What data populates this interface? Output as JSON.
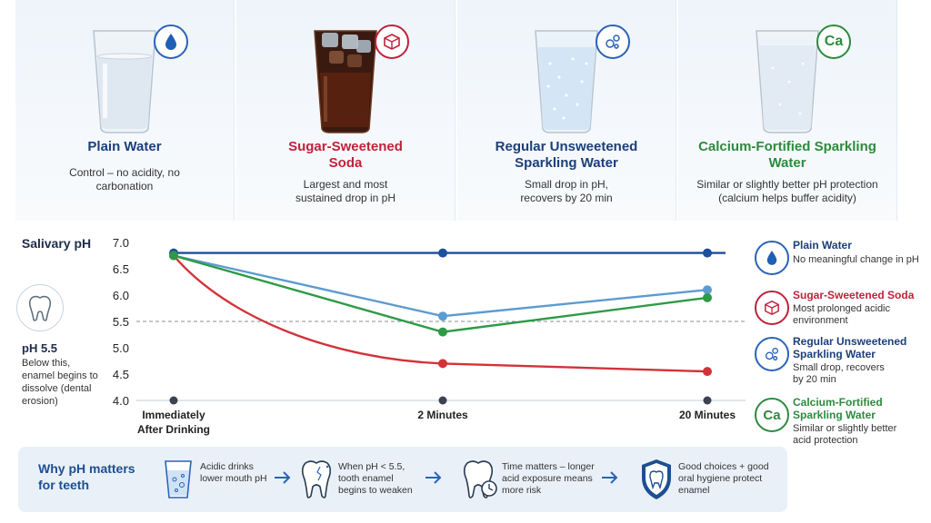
{
  "drinks": [
    {
      "name": "Plain Water",
      "desc": "Control – no acidity, no carbonation",
      "color": "#1c3f7a",
      "badge_icon": "water-drop-icon"
    },
    {
      "name": "Sugar-Sweetened Soda",
      "desc": "Largest and most sustained drop in pH",
      "color": "#c0223a",
      "badge_icon": "sugar-cube-icon"
    },
    {
      "name": "Regular Unsweetened Sparkling Water",
      "desc": "Small drop in pH, recovers by 20 min",
      "color": "#1c3f7a",
      "badge_icon": "bubbles-icon"
    },
    {
      "name": "Calcium-Fortified Sparkling Water",
      "desc": "Similar or slightly better pH protection (calcium helps buffer acidity)",
      "color": "#2e8a3e",
      "badge_text": "Ca"
    }
  ],
  "chart_data": {
    "type": "line",
    "ylabel": "Salivary pH",
    "categories": [
      "Immediately After Drinking",
      "2 Minutes",
      "20 Minutes"
    ],
    "ylim": [
      4.0,
      7.0
    ],
    "yticks": [
      "4.0",
      "4.5",
      "5.0",
      "5.5",
      "6.0",
      "6.5",
      "7.0"
    ],
    "reference_line": {
      "y": 5.5,
      "style": "dashed"
    },
    "series": [
      {
        "name": "Plain Water",
        "color": "#1c4f9c",
        "values": [
          6.8,
          6.8,
          6.8
        ]
      },
      {
        "name": "Sugar-Sweetened Soda",
        "color": "#d23238",
        "values": [
          6.75,
          4.7,
          4.55
        ]
      },
      {
        "name": "Regular Unsweetened Sparkling Water",
        "color": "#5c9bd0",
        "values": [
          6.75,
          5.6,
          6.1
        ]
      },
      {
        "name": "Calcium-Fortified Sparkling Water",
        "color": "#2e9a46",
        "values": [
          6.75,
          5.3,
          5.95
        ]
      }
    ]
  },
  "threshold": {
    "title": "pH 5.5",
    "desc": "Below this, enamel begins to dissolve (dental erosion)"
  },
  "legend": [
    {
      "name": "Plain Water",
      "desc": "No meaningful change in pH",
      "color": "#1c3f7a",
      "icon": "water-drop-icon"
    },
    {
      "name": "Sugar-Sweetened Soda",
      "desc": "Most prolonged acidic environment",
      "color": "#c0223a",
      "icon": "sugar-cube-icon"
    },
    {
      "name": "Regular Unsweetened Sparkling Water",
      "desc": "Small drop, recovers by 20 min",
      "color": "#1c3f7a",
      "icon": "bubbles-icon"
    },
    {
      "name": "Calcium-Fortified Sparkling Water",
      "desc": "Similar or slightly better acid protection",
      "color": "#2e8a3e",
      "icon_text": "Ca"
    }
  ],
  "why": {
    "title": "Why pH matters for teeth",
    "steps": [
      {
        "text": "Acidic drinks lower mouth pH",
        "icon": "glass-bubbles-icon"
      },
      {
        "text": "When pH < 5.5, tooth enamel begins to weaken",
        "icon": "cracked-tooth-icon"
      },
      {
        "text": "Time matters – longer acid exposure means more risk",
        "icon": "tooth-clock-icon"
      },
      {
        "text": "Good choices + good oral hygiene protect enamel",
        "icon": "tooth-shield-icon"
      }
    ]
  }
}
